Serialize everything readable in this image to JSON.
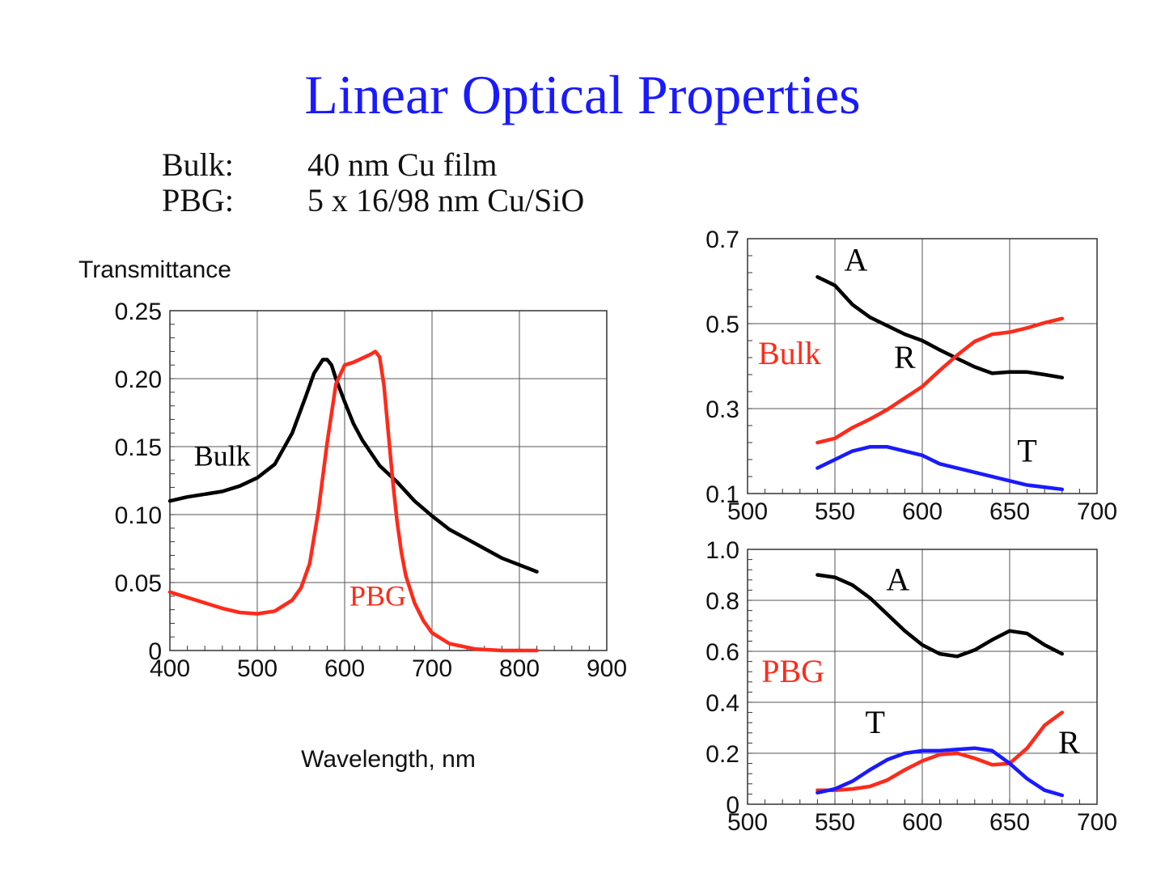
{
  "title": "Linear Optical Properties",
  "description": [
    {
      "label": "Bulk:",
      "value": "40 nm Cu film"
    },
    {
      "label": "PBG:",
      "value": "5 x 16/98 nm Cu/SiO"
    }
  ],
  "colors": {
    "title": "#1a1aff",
    "black": "#000000",
    "red": "#ff2a1a",
    "blue": "#1a1aff"
  },
  "chart_data": [
    {
      "type": "line",
      "ylabel": "Transmittance",
      "xlabel": "Wavelength, nm",
      "xlim": [
        400,
        900
      ],
      "ylim": [
        0,
        0.25
      ],
      "xticks": [
        400,
        500,
        600,
        700,
        800,
        900
      ],
      "xtick_labels": [
        "400",
        "500",
        "600",
        "700",
        "800",
        "900"
      ],
      "yticks": [
        0,
        0.05,
        0.1,
        0.15,
        0.2,
        0.25
      ],
      "ytick_labels": [
        "0",
        "0.05",
        "0.10",
        "0.15",
        "0.20",
        "0.25"
      ],
      "grid": true,
      "series": [
        {
          "name": "Bulk",
          "color": "#000000",
          "x": [
            400,
            420,
            440,
            460,
            480,
            500,
            520,
            540,
            555,
            565,
            575,
            580,
            585,
            590,
            600,
            610,
            620,
            640,
            660,
            680,
            700,
            720,
            740,
            760,
            780,
            800,
            820
          ],
          "y": [
            0.11,
            0.113,
            0.115,
            0.117,
            0.121,
            0.127,
            0.137,
            0.16,
            0.186,
            0.204,
            0.214,
            0.214,
            0.21,
            0.2,
            0.183,
            0.167,
            0.155,
            0.136,
            0.124,
            0.11,
            0.099,
            0.089,
            0.082,
            0.075,
            0.068,
            0.063,
            0.058
          ]
        },
        {
          "name": "PBG",
          "color": "#ff2a1a",
          "x": [
            400,
            420,
            440,
            460,
            480,
            500,
            520,
            540,
            550,
            560,
            570,
            580,
            590,
            600,
            610,
            620,
            630,
            635,
            640,
            645,
            650,
            655,
            660,
            665,
            670,
            680,
            690,
            700,
            720,
            750,
            780,
            800,
            820
          ],
          "y": [
            0.043,
            0.039,
            0.035,
            0.031,
            0.028,
            0.027,
            0.029,
            0.037,
            0.046,
            0.064,
            0.103,
            0.153,
            0.196,
            0.21,
            0.212,
            0.215,
            0.218,
            0.22,
            0.216,
            0.195,
            0.16,
            0.125,
            0.095,
            0.072,
            0.055,
            0.035,
            0.022,
            0.013,
            0.005,
            0.001,
            0.0,
            0.0,
            0.0
          ]
        }
      ],
      "annotations": [
        {
          "text": "Bulk",
          "color": "#000000",
          "x": 460,
          "y": 0.136
        },
        {
          "text": "PBG",
          "color": "#ff2a1a",
          "x": 638,
          "y": 0.033
        }
      ]
    },
    {
      "type": "line",
      "xlim": [
        500,
        700
      ],
      "ylim": [
        0.1,
        0.7
      ],
      "xticks": [
        500,
        550,
        600,
        650,
        700
      ],
      "xtick_labels": [
        "500",
        "550",
        "600",
        "650",
        "700"
      ],
      "yticks": [
        0.1,
        0.3,
        0.5,
        0.7
      ],
      "ytick_labels": [
        "0.1",
        "0.3",
        "0.5",
        "0.7"
      ],
      "grid": true,
      "series": [
        {
          "name": "A",
          "color": "#000000",
          "x": [
            540,
            550,
            560,
            570,
            580,
            590,
            600,
            610,
            620,
            630,
            640,
            650,
            660,
            670,
            680
          ],
          "y": [
            0.61,
            0.59,
            0.545,
            0.515,
            0.495,
            0.475,
            0.46,
            0.438,
            0.418,
            0.398,
            0.383,
            0.386,
            0.386,
            0.38,
            0.373
          ]
        },
        {
          "name": "R",
          "color": "#ff2a1a",
          "x": [
            540,
            550,
            560,
            570,
            580,
            590,
            600,
            610,
            620,
            630,
            640,
            650,
            660,
            670,
            680
          ],
          "y": [
            0.22,
            0.23,
            0.255,
            0.275,
            0.298,
            0.325,
            0.352,
            0.39,
            0.426,
            0.458,
            0.475,
            0.48,
            0.49,
            0.502,
            0.512
          ]
        },
        {
          "name": "T",
          "color": "#1a1aff",
          "x": [
            540,
            550,
            560,
            570,
            580,
            590,
            600,
            610,
            620,
            630,
            640,
            650,
            660,
            670,
            680
          ],
          "y": [
            0.16,
            0.18,
            0.2,
            0.21,
            0.21,
            0.2,
            0.19,
            0.17,
            0.16,
            0.15,
            0.14,
            0.13,
            0.12,
            0.115,
            0.11
          ]
        }
      ],
      "annotations": [
        {
          "text": "A",
          "color": "#000000",
          "x": 562,
          "y": 0.625
        },
        {
          "text": "R",
          "color": "#000000",
          "x": 590,
          "y": 0.395
        },
        {
          "text": "T",
          "color": "#000000",
          "x": 660,
          "y": 0.175
        },
        {
          "text": "Bulk",
          "color": "#ff2a1a",
          "x": 524,
          "y": 0.405
        }
      ]
    },
    {
      "type": "line",
      "xlim": [
        500,
        700
      ],
      "ylim": [
        0,
        1.0
      ],
      "xticks": [
        500,
        550,
        600,
        650,
        700
      ],
      "xtick_labels": [
        "500",
        "550",
        "600",
        "650",
        "700"
      ],
      "yticks": [
        0,
        0.2,
        0.4,
        0.6,
        0.8,
        1.0
      ],
      "ytick_labels": [
        "0",
        "0.2",
        "0.4",
        "0.6",
        "0.8",
        "1.0"
      ],
      "grid": true,
      "series": [
        {
          "name": "A",
          "color": "#000000",
          "x": [
            540,
            550,
            560,
            570,
            580,
            590,
            600,
            610,
            620,
            630,
            640,
            650,
            660,
            670,
            680
          ],
          "y": [
            0.9,
            0.89,
            0.86,
            0.81,
            0.745,
            0.68,
            0.625,
            0.59,
            0.58,
            0.605,
            0.645,
            0.68,
            0.67,
            0.625,
            0.59
          ]
        },
        {
          "name": "R",
          "color": "#ff2a1a",
          "x": [
            540,
            550,
            560,
            570,
            580,
            590,
            600,
            610,
            620,
            630,
            640,
            650,
            660,
            670,
            680
          ],
          "y": [
            0.055,
            0.055,
            0.06,
            0.07,
            0.095,
            0.135,
            0.17,
            0.195,
            0.2,
            0.18,
            0.155,
            0.16,
            0.22,
            0.31,
            0.36
          ]
        },
        {
          "name": "T",
          "color": "#1a1aff",
          "x": [
            540,
            550,
            560,
            570,
            580,
            590,
            600,
            610,
            620,
            630,
            640,
            650,
            660,
            670,
            680
          ],
          "y": [
            0.045,
            0.06,
            0.09,
            0.135,
            0.175,
            0.2,
            0.21,
            0.21,
            0.215,
            0.22,
            0.21,
            0.16,
            0.1,
            0.055,
            0.035
          ]
        }
      ],
      "annotations": [
        {
          "text": "A",
          "color": "#000000",
          "x": 586,
          "y": 0.84
        },
        {
          "text": "PBG",
          "color": "#ff2a1a",
          "x": 526,
          "y": 0.48
        },
        {
          "text": "T",
          "color": "#000000",
          "x": 573,
          "y": 0.28
        },
        {
          "text": "R",
          "color": "#000000",
          "x": 684,
          "y": 0.2
        }
      ]
    }
  ]
}
